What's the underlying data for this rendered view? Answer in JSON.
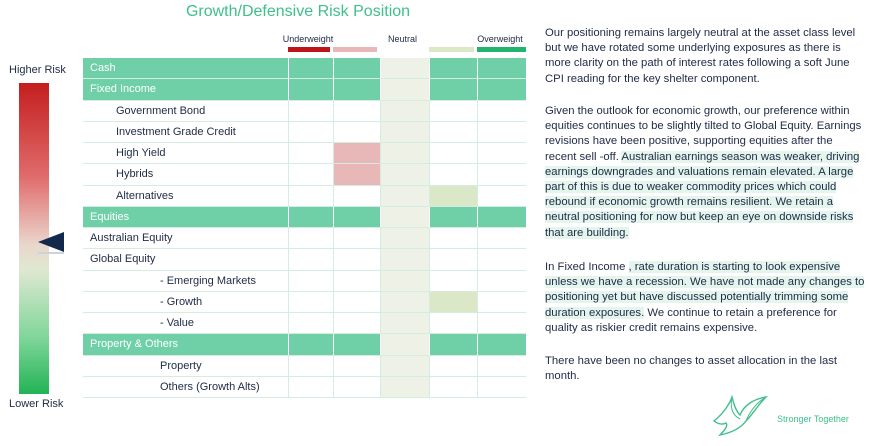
{
  "title": "Growth/Defensive Risk Position",
  "risk": {
    "higher": "Higher Risk",
    "lower": "Lower Risk"
  },
  "headers": {
    "underweight": "Underweight",
    "neutral": "Neutral",
    "overweight": "Overweight"
  },
  "colors": {
    "section": "#6fd0a8",
    "neutral_col": "#eef2e6",
    "uw_strong": "#c0141b",
    "uw_light": "#e8b7b7",
    "ow_light": "#dbe8c8",
    "ow_strong": "#22b46e"
  },
  "rows": [
    {
      "label": "Cash",
      "section": true,
      "position": "neutral"
    },
    {
      "label": "Fixed Income",
      "section": true,
      "position": "neutral"
    },
    {
      "label": "Government Bond",
      "indent": 1,
      "position": "neutral"
    },
    {
      "label": "Investment Grade Credit",
      "indent": 1,
      "position": "neutral"
    },
    {
      "label": "High Yield",
      "indent": 1,
      "position": "underweight-light"
    },
    {
      "label": "Hybrids",
      "indent": 1,
      "position": "underweight-light"
    },
    {
      "label": "Alternatives",
      "indent": 1,
      "position": "overweight-light"
    },
    {
      "label": "Equities",
      "section": true,
      "position": "neutral"
    },
    {
      "label": "Australian Equity",
      "indent": 0,
      "position": "neutral"
    },
    {
      "label": "Global Equity",
      "indent": 0,
      "position": "neutral"
    },
    {
      "label": "- Emerging Markets",
      "indent": 2,
      "position": "neutral"
    },
    {
      "label": "- Growth",
      "indent": 2,
      "position": "overweight-light"
    },
    {
      "label": "- Value",
      "indent": 2,
      "position": "neutral"
    },
    {
      "label": "Property & Others",
      "section": true,
      "position": "neutral"
    },
    {
      "label": "Property",
      "indent": 2,
      "position": "neutral"
    },
    {
      "label": "Others (Growth Alts)",
      "indent": 2,
      "position": "neutral"
    }
  ],
  "paragraphs": [
    {
      "text": "Our positioning remains largely neutral at the asset class level but we have rotated some underlying exposures as there is more clarity on the path of interest rates following a soft June CPI reading for the key shelter component."
    },
    {
      "text": "Given the outlook for economic growth, our preference within equities continues to be slightly tilted to Global Equity. Earnings revisions have been positive, supporting equities after the recent sell -off. ",
      "highlight": "Australian earnings season was weaker, driving earnings downgrades and valuations remain elevated. A large part of this is due to weaker commodity prices which could rebound if economic growth remains resilient. We retain a neutral positioning for now but keep an eye on downside risks that are building."
    },
    {
      "text": "In Fixed Income ",
      "highlight": ", rate duration is starting to look expensive unless we have a recession. We have not made any changes to positioning yet but have discussed potentially trimming some duration exposures.",
      "tail": "  We continue to retain a preference for quality as riskier credit remains expensive."
    },
    {
      "text": "There have been no changes to asset allocation in the last month."
    }
  ],
  "tagline": "Stronger Together"
}
